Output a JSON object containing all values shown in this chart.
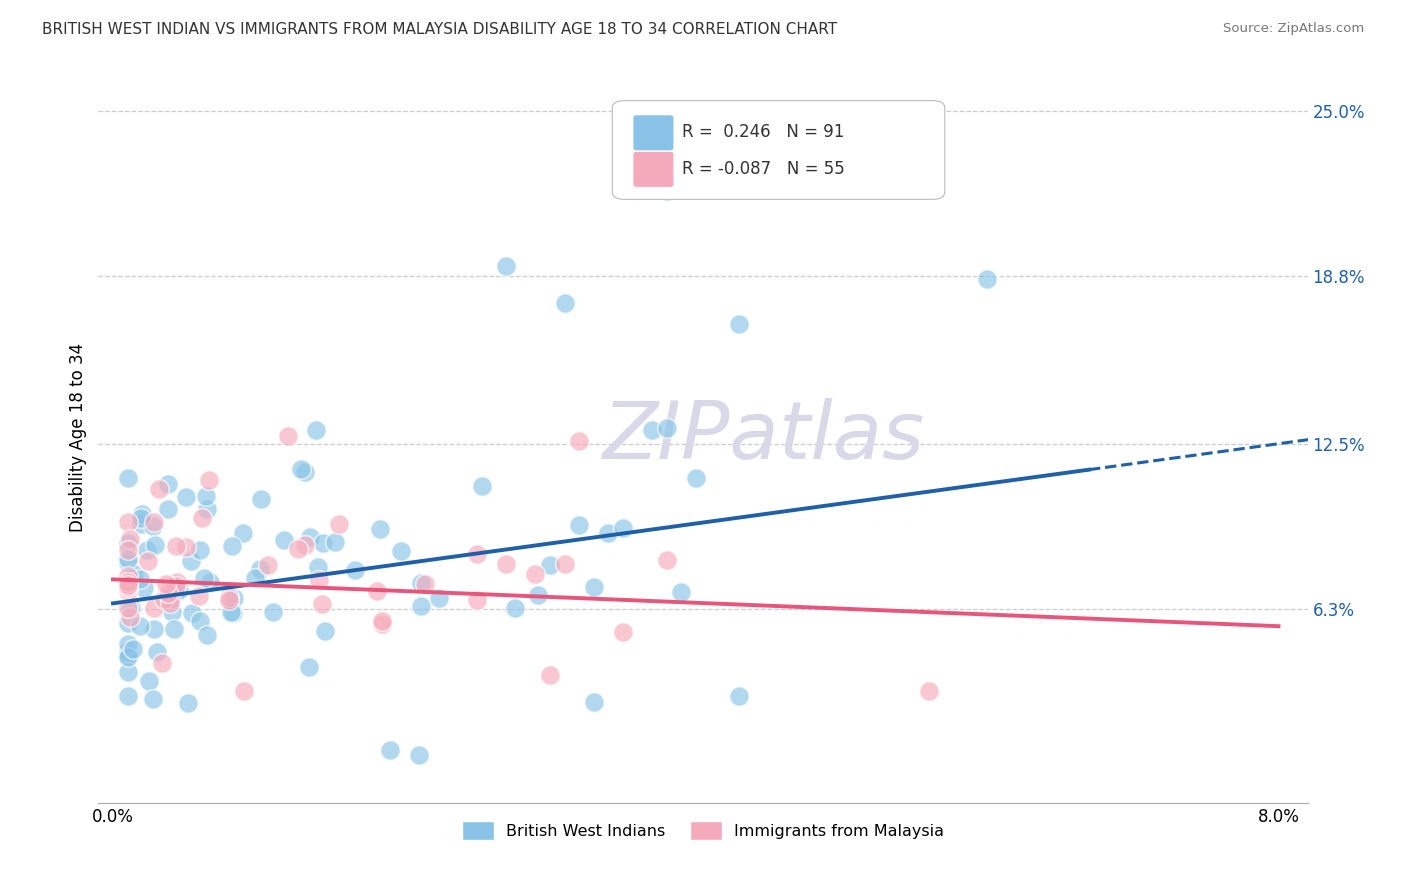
{
  "title": "BRITISH WEST INDIAN VS IMMIGRANTS FROM MALAYSIA DISABILITY AGE 18 TO 34 CORRELATION CHART",
  "source": "Source: ZipAtlas.com",
  "ylabel": "Disability Age 18 to 34",
  "ytick_labels": [
    "6.3%",
    "12.5%",
    "18.8%",
    "25.0%"
  ],
  "ytick_values": [
    0.063,
    0.125,
    0.188,
    0.25
  ],
  "xmin": 0.0,
  "xmax": 0.08,
  "ymin": -0.01,
  "ymax": 0.265,
  "legend1_r": "0.246",
  "legend1_n": "91",
  "legend2_r": "-0.087",
  "legend2_n": "55",
  "color_blue": "#89C4E8",
  "color_pink": "#F5AABB",
  "trendline_blue": "#2060A8",
  "trendline_pink": "#E8547A",
  "watermark_color": "#D8D8E8",
  "blue_intercept": 0.065,
  "blue_slope": 0.75,
  "pink_intercept": 0.074,
  "pink_slope": -0.22
}
